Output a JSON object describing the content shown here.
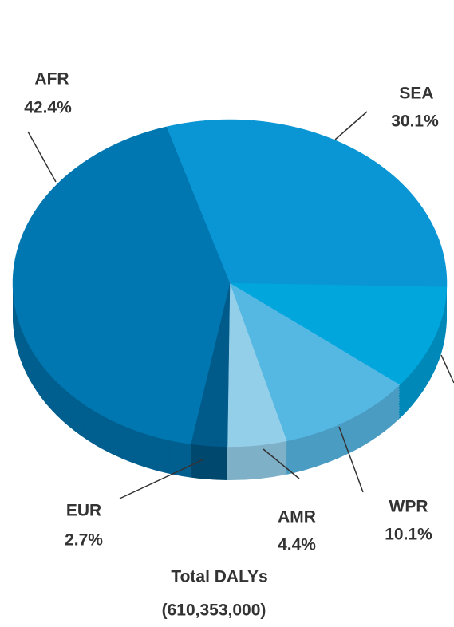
{
  "chart_data": {
    "type": "pie",
    "title": "Total DALYs",
    "subtitle": "(610,353,000)",
    "categories": [
      "SEA",
      null,
      "WPR",
      "AMR",
      "EUR",
      "AFR"
    ],
    "values": [
      30.1,
      10.3,
      10.1,
      4.4,
      2.7,
      42.4
    ],
    "value_labels": [
      "30.1%",
      null,
      "10.1%",
      "4.4%",
      "2.7%",
      "42.4%"
    ],
    "colors": [
      "#0a96d4",
      "#00a6dc",
      "#55b8e2",
      "#94cfea",
      "#005a8a",
      "#0077b0"
    ],
    "side_colors": [
      "#0878aa",
      "#0088b8",
      "#4a9cc2",
      "#7eb0c8",
      "#00486e",
      "#005f8e"
    ]
  }
}
